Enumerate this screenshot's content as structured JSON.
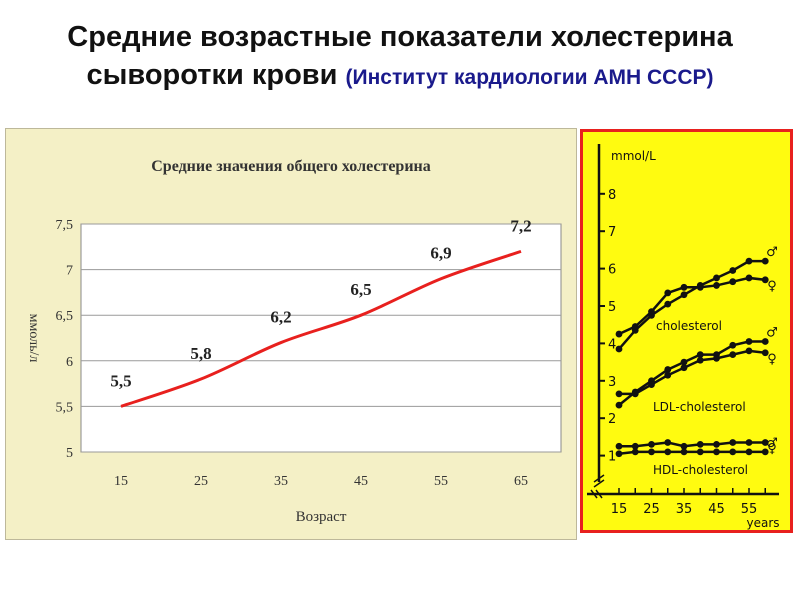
{
  "slide": {
    "title_line1": "Средние возрастные показатели холестерина",
    "title_line2": "сыворотки крови",
    "title_source": "(Институт кардиологии АМН СССР)"
  },
  "chart_data": [
    {
      "type": "line",
      "title": "Средние значения общего холестерина",
      "xlabel": "Возраст",
      "ylabel": "ммоль/л",
      "x": [
        15,
        25,
        35,
        45,
        55,
        65
      ],
      "x_ticks": [
        "15",
        "25",
        "35",
        "45",
        "55",
        "65"
      ],
      "y_ticks": [
        "5",
        "5,5",
        "6",
        "6,5",
        "7",
        "7,5"
      ],
      "ylim": [
        5,
        7.5
      ],
      "grid": "horizontal",
      "series": [
        {
          "values": [
            5.5,
            5.8,
            6.2,
            6.5,
            6.9,
            7.2
          ],
          "labels": [
            "5,5",
            "5,8",
            "6,2",
            "6,5",
            "6,9",
            "7,2"
          ]
        }
      ],
      "colors": {
        "line": "#e8201e",
        "background": "#f4f0c6",
        "plot_area": "#ffffff"
      }
    },
    {
      "type": "line",
      "xlabel": "years",
      "ylabel": "mmol/L",
      "x": [
        15,
        20,
        25,
        30,
        35,
        40,
        45,
        50,
        55,
        60
      ],
      "x_ticks": [
        "15",
        "25",
        "35",
        "45",
        "55"
      ],
      "y_ticks": [
        "1",
        "2",
        "3",
        "4",
        "5",
        "6",
        "7",
        "8"
      ],
      "ylim": [
        0,
        8.5
      ],
      "annotations": [
        "cholesterol",
        "LDL-cholesterol",
        "HDL-cholesterol"
      ],
      "series": [
        {
          "group": "cholesterol",
          "sex": "male",
          "symbol": "♂",
          "values": [
            3.85,
            4.35,
            4.75,
            5.05,
            5.3,
            5.55,
            5.75,
            5.95,
            6.2,
            6.2
          ]
        },
        {
          "group": "cholesterol",
          "sex": "female",
          "symbol": "♀",
          "values": [
            4.25,
            4.45,
            4.85,
            5.35,
            5.5,
            5.5,
            5.55,
            5.65,
            5.75,
            5.7
          ]
        },
        {
          "group": "LDL-cholesterol",
          "sex": "male",
          "symbol": "♂",
          "values": [
            2.35,
            2.7,
            3.0,
            3.3,
            3.5,
            3.7,
            3.7,
            3.95,
            4.05,
            4.05
          ]
        },
        {
          "group": "LDL-cholesterol",
          "sex": "female",
          "symbol": "♀",
          "values": [
            2.65,
            2.65,
            2.9,
            3.15,
            3.35,
            3.55,
            3.6,
            3.7,
            3.8,
            3.75
          ]
        },
        {
          "group": "HDL-cholesterol",
          "sex": "female",
          "symbol": "♀",
          "values": [
            1.25,
            1.25,
            1.3,
            1.35,
            1.25,
            1.3,
            1.3,
            1.35,
            1.35,
            1.35
          ]
        },
        {
          "group": "HDL-cholesterol",
          "sex": "male",
          "symbol": "♂",
          "values": [
            1.05,
            1.1,
            1.1,
            1.1,
            1.1,
            1.1,
            1.1,
            1.1,
            1.1,
            1.1
          ]
        }
      ],
      "colors": {
        "background": "#fffb10",
        "border": "#e8201e",
        "ink": "#111111"
      }
    }
  ]
}
